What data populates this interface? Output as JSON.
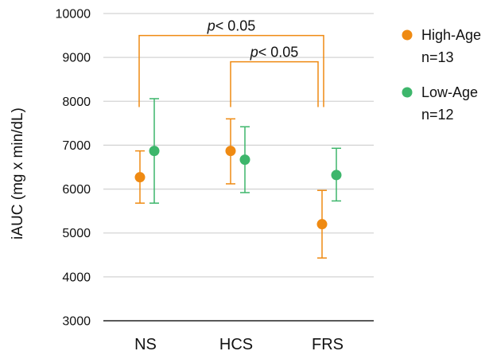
{
  "chart_data": {
    "type": "scatter",
    "title": "",
    "xlabel": "",
    "ylabel": "iAUC (mg x min/dL)",
    "ylim": [
      3000,
      10000
    ],
    "yticks": [
      3000,
      4000,
      5000,
      6000,
      7000,
      8000,
      9000,
      10000
    ],
    "ytick_labels": [
      "3000",
      "4000",
      "5000",
      "6000",
      "7000",
      "8000",
      "9000",
      "10000"
    ],
    "grid": true,
    "legend_position": "right",
    "categories": [
      "NS",
      "HCS",
      "FRS"
    ],
    "series": [
      {
        "name": "High-Age",
        "legend_line2": "n=13",
        "color": "#EF8A12",
        "values": [
          6270,
          6870,
          5200
        ],
        "err_low": [
          5680,
          6120,
          4430
        ],
        "err_high": [
          6870,
          7600,
          5970
        ]
      },
      {
        "name": "Low-Age",
        "legend_line2": "n=12",
        "color": "#3DB66B",
        "values": [
          6870,
          6670,
          6320
        ],
        "err_low": [
          5680,
          5920,
          5730
        ],
        "err_high": [
          8060,
          7420,
          6930
        ]
      }
    ],
    "annotations": [
      {
        "prefix": "p",
        "text": "< 0.05",
        "from": "NS",
        "to": "FRS",
        "y": 9500,
        "drop_to": 7870
      },
      {
        "prefix": "p",
        "text": "< 0.05",
        "from": "HCS",
        "to": "FRS",
        "y": 8900,
        "drop_to": 7870
      }
    ]
  }
}
